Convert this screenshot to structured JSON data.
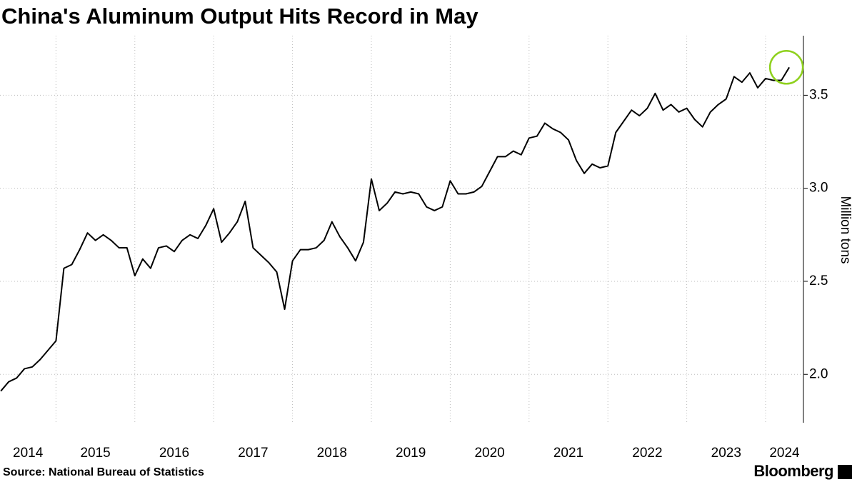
{
  "chart_data": {
    "type": "line",
    "title": "China's Aluminum Output Hits Record in May",
    "y_label": "Million tons",
    "source": "Source: National Bureau of Statistics",
    "brand": "Bloomberg",
    "color": "#000000",
    "highlight_color": "#8fd11e",
    "grid": true,
    "y_axis_side": "right",
    "xlim": [
      2014.29,
      2024.48
    ],
    "xticks": [
      {
        "value": 2014,
        "label": "2014"
      },
      {
        "value": 2015,
        "label": "2015"
      },
      {
        "value": 2016,
        "label": "2016"
      },
      {
        "value": 2017,
        "label": "2017"
      },
      {
        "value": 2018,
        "label": "2018"
      },
      {
        "value": 2019,
        "label": "2019"
      },
      {
        "value": 2020,
        "label": "2020"
      },
      {
        "value": 2021,
        "label": "2021"
      },
      {
        "value": 2022,
        "label": "2022"
      },
      {
        "value": 2023,
        "label": "2023"
      },
      {
        "value": 2024,
        "label": "2024"
      }
    ],
    "ylim": [
      1.74,
      3.82
    ],
    "yticks": [
      {
        "value": 2,
        "label": "2.0"
      },
      {
        "value": 2.5,
        "label": "2.5"
      },
      {
        "value": 3,
        "label": "3.0"
      },
      {
        "value": 3.5,
        "label": "3.5"
      }
    ],
    "x": [
      2014.3,
      2014.4,
      2014.5,
      2014.6,
      2014.7,
      2014.8,
      2014.9,
      2015.0,
      2015.1,
      2015.2,
      2015.3,
      2015.4,
      2015.5,
      2015.6,
      2015.7,
      2015.8,
      2015.9,
      2016.0,
      2016.1,
      2016.2,
      2016.3,
      2016.4,
      2016.5,
      2016.6,
      2016.7,
      2016.8,
      2016.9,
      2017.0,
      2017.1,
      2017.2,
      2017.3,
      2017.4,
      2017.5,
      2017.6,
      2017.7,
      2017.8,
      2017.9,
      2018.0,
      2018.1,
      2018.2,
      2018.3,
      2018.4,
      2018.5,
      2018.6,
      2018.7,
      2018.8,
      2018.9,
      2019.0,
      2019.1,
      2019.2,
      2019.3,
      2019.4,
      2019.5,
      2019.6,
      2019.7,
      2019.8,
      2019.9,
      2020.0,
      2020.1,
      2020.2,
      2020.3,
      2020.4,
      2020.5,
      2020.6,
      2020.7,
      2020.8,
      2020.9,
      2021.0,
      2021.1,
      2021.2,
      2021.3,
      2021.4,
      2021.5,
      2021.6,
      2021.7,
      2021.8,
      2021.9,
      2022.0,
      2022.1,
      2022.2,
      2022.3,
      2022.4,
      2022.5,
      2022.6,
      2022.7,
      2022.8,
      2022.9,
      2023.0,
      2023.1,
      2023.2,
      2023.3,
      2023.4,
      2023.5,
      2023.6,
      2023.7,
      2023.8,
      2023.9,
      2024.0,
      2024.1,
      2024.2,
      2024.3
    ],
    "values": [
      1.91,
      1.96,
      1.98,
      2.03,
      2.04,
      2.08,
      2.13,
      2.18,
      2.57,
      2.59,
      2.67,
      2.76,
      2.72,
      2.75,
      2.72,
      2.68,
      2.68,
      2.53,
      2.62,
      2.57,
      2.68,
      2.69,
      2.66,
      2.72,
      2.75,
      2.73,
      2.8,
      2.89,
      2.71,
      2.76,
      2.82,
      2.93,
      2.68,
      2.64,
      2.6,
      2.55,
      2.35,
      2.61,
      2.67,
      2.67,
      2.68,
      2.72,
      2.82,
      2.74,
      2.68,
      2.61,
      2.71,
      3.05,
      2.88,
      2.92,
      2.98,
      2.97,
      2.98,
      2.97,
      2.9,
      2.88,
      2.9,
      3.04,
      2.97,
      2.97,
      2.98,
      3.01,
      3.09,
      3.17,
      3.17,
      3.2,
      3.18,
      3.27,
      3.28,
      3.35,
      3.32,
      3.3,
      3.26,
      3.15,
      3.08,
      3.13,
      3.11,
      3.12,
      3.3,
      3.36,
      3.42,
      3.39,
      3.43,
      3.51,
      3.42,
      3.45,
      3.41,
      3.43,
      3.37,
      3.33,
      3.41,
      3.45,
      3.48,
      3.6,
      3.57,
      3.62,
      3.54,
      3.59,
      3.58,
      3.58,
      3.65
    ]
  }
}
